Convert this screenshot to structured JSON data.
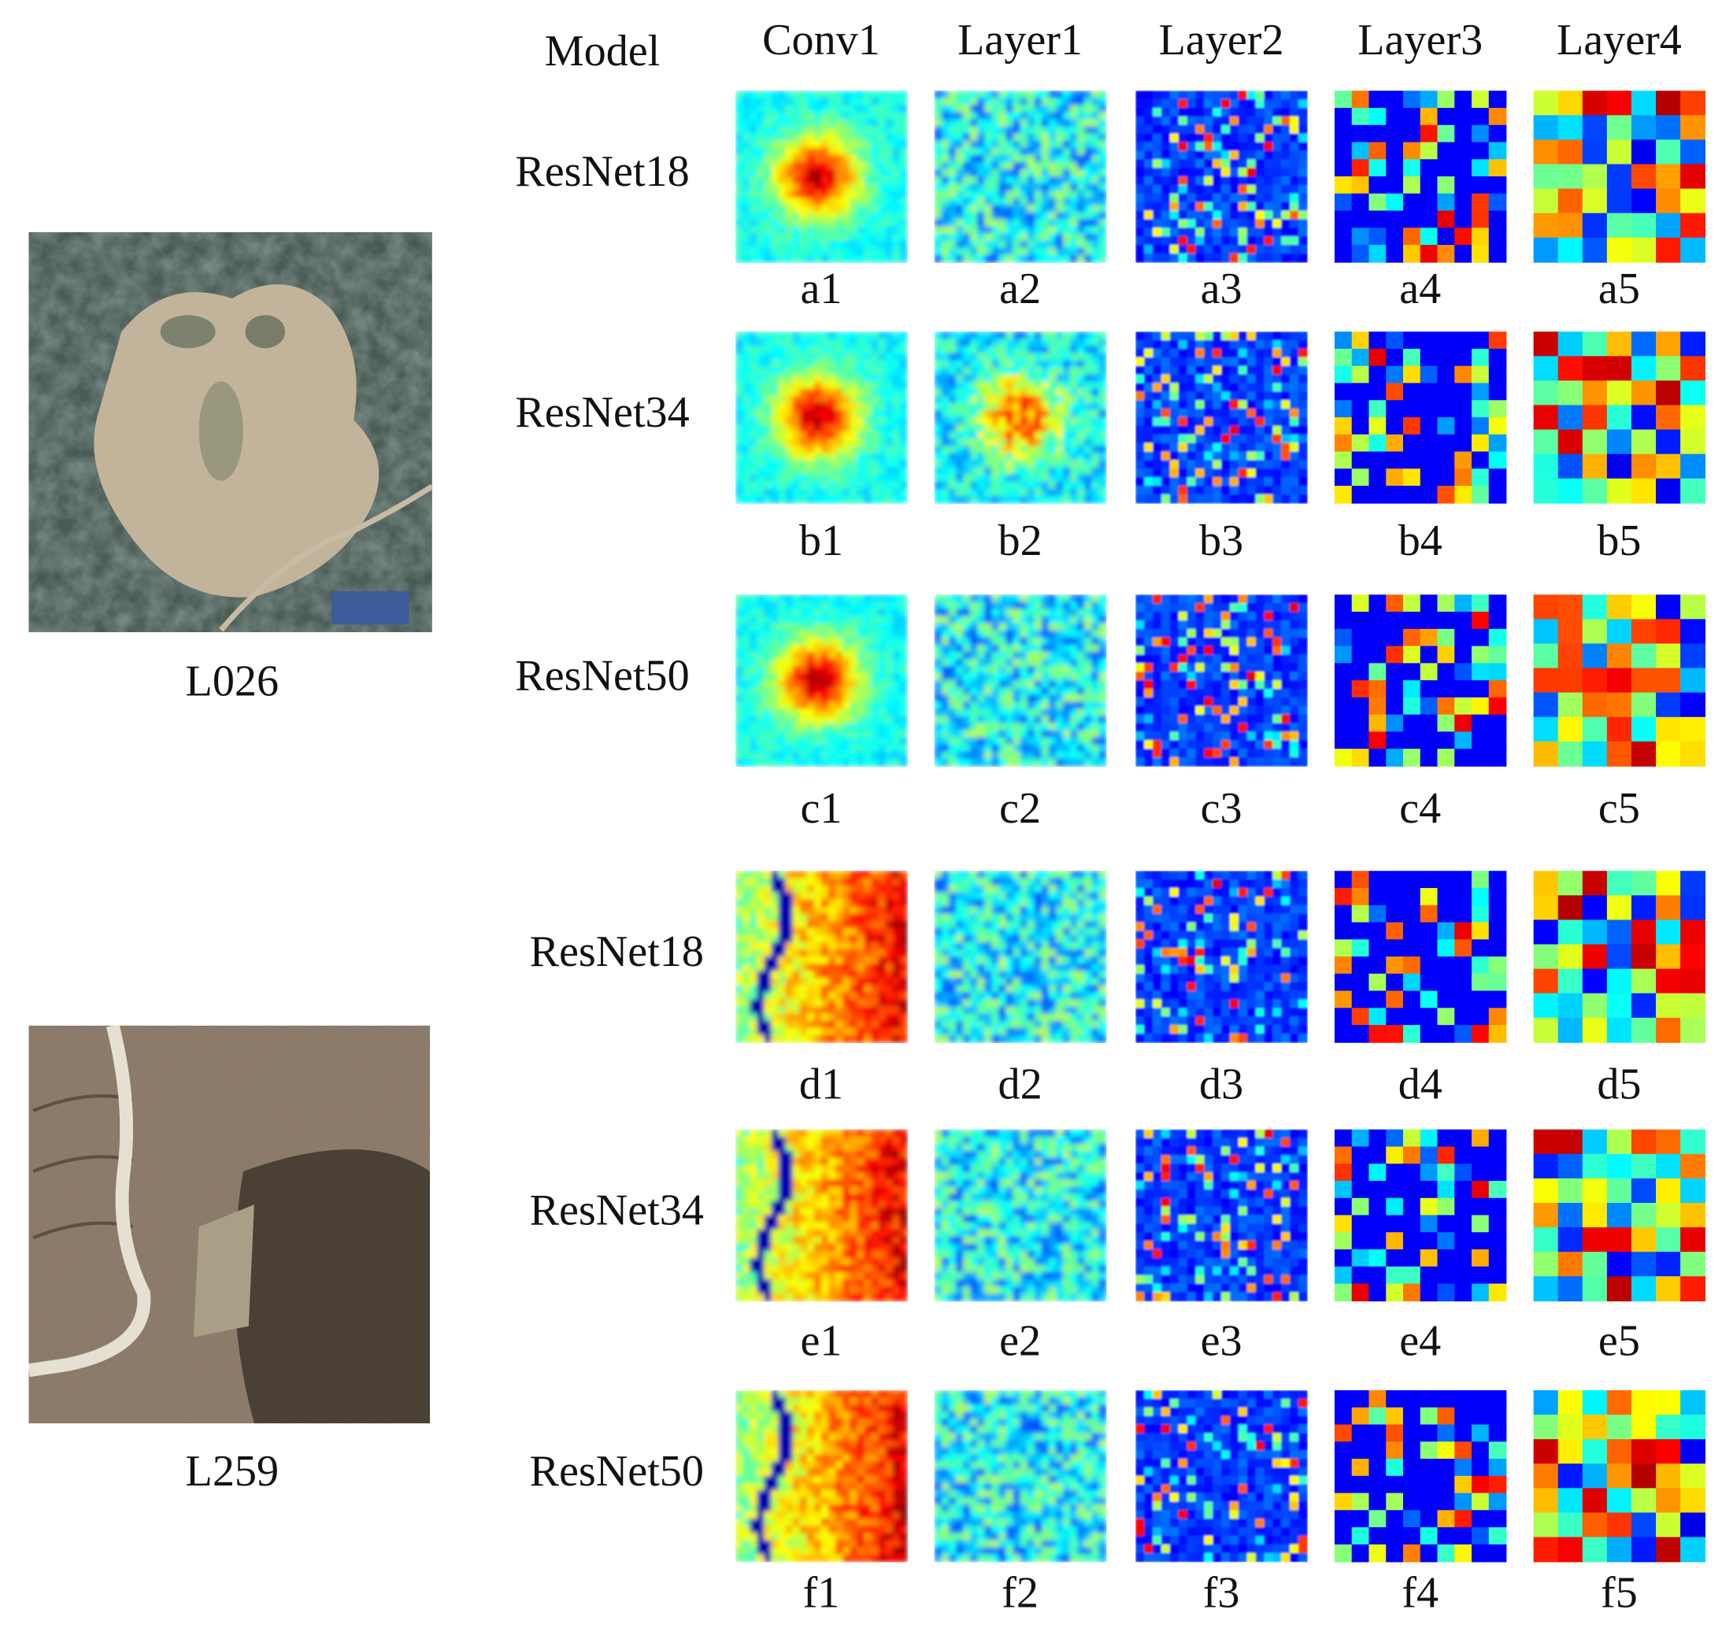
{
  "header": {
    "model_label": "Model",
    "columns": [
      "Conv1",
      "Layer1",
      "Layer2",
      "Layer3",
      "Layer4"
    ]
  },
  "samples": [
    {
      "label": "L026"
    },
    {
      "label": "L259"
    }
  ],
  "rows": [
    {
      "model": "ResNet18",
      "labels": [
        "a1",
        "a2",
        "a3",
        "a4",
        "a5"
      ]
    },
    {
      "model": "ResNet34",
      "labels": [
        "b1",
        "b2",
        "b3",
        "b4",
        "b5"
      ]
    },
    {
      "model": "ResNet50",
      "labels": [
        "c1",
        "c2",
        "c3",
        "c4",
        "c5"
      ]
    },
    {
      "model": "ResNet18",
      "labels": [
        "d1",
        "d2",
        "d3",
        "d4",
        "d5"
      ]
    },
    {
      "model": "ResNet34",
      "labels": [
        "e1",
        "e2",
        "e3",
        "e4",
        "e5"
      ]
    },
    {
      "model": "ResNet50",
      "labels": [
        "f1",
        "f2",
        "f3",
        "f4",
        "f5"
      ]
    }
  ]
}
